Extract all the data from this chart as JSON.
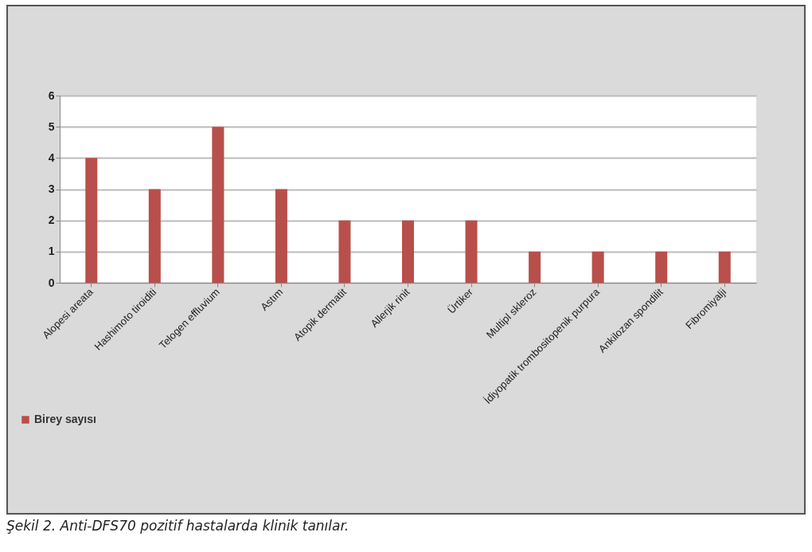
{
  "chart_data": {
    "type": "bar",
    "categories": [
      "Alopesi areata",
      "Hashimoto tiroiditi",
      "Telogen effluvium",
      "Astım",
      "Atopik dermatit",
      "Allerjik rinit",
      "Ürtiker",
      "Multipl skleroz",
      "İdiyopatik trombositopenik purpura",
      "Ankilozan spondilit",
      "Fibromiyalji"
    ],
    "series": [
      {
        "name": "Birey sayısı",
        "color": "#b84f4a",
        "values": [
          4,
          3,
          5,
          3,
          2,
          2,
          2,
          1,
          1,
          1,
          1
        ]
      }
    ],
    "ylim": [
      0,
      6
    ],
    "yticks": [
      0,
      1,
      2,
      3,
      4,
      5,
      6
    ],
    "grid": "y",
    "legend": "bottom left",
    "annotations": [
      "Şekil 2. Anti-DFS70 pozitif hastalarda klinik tanılar."
    ]
  }
}
